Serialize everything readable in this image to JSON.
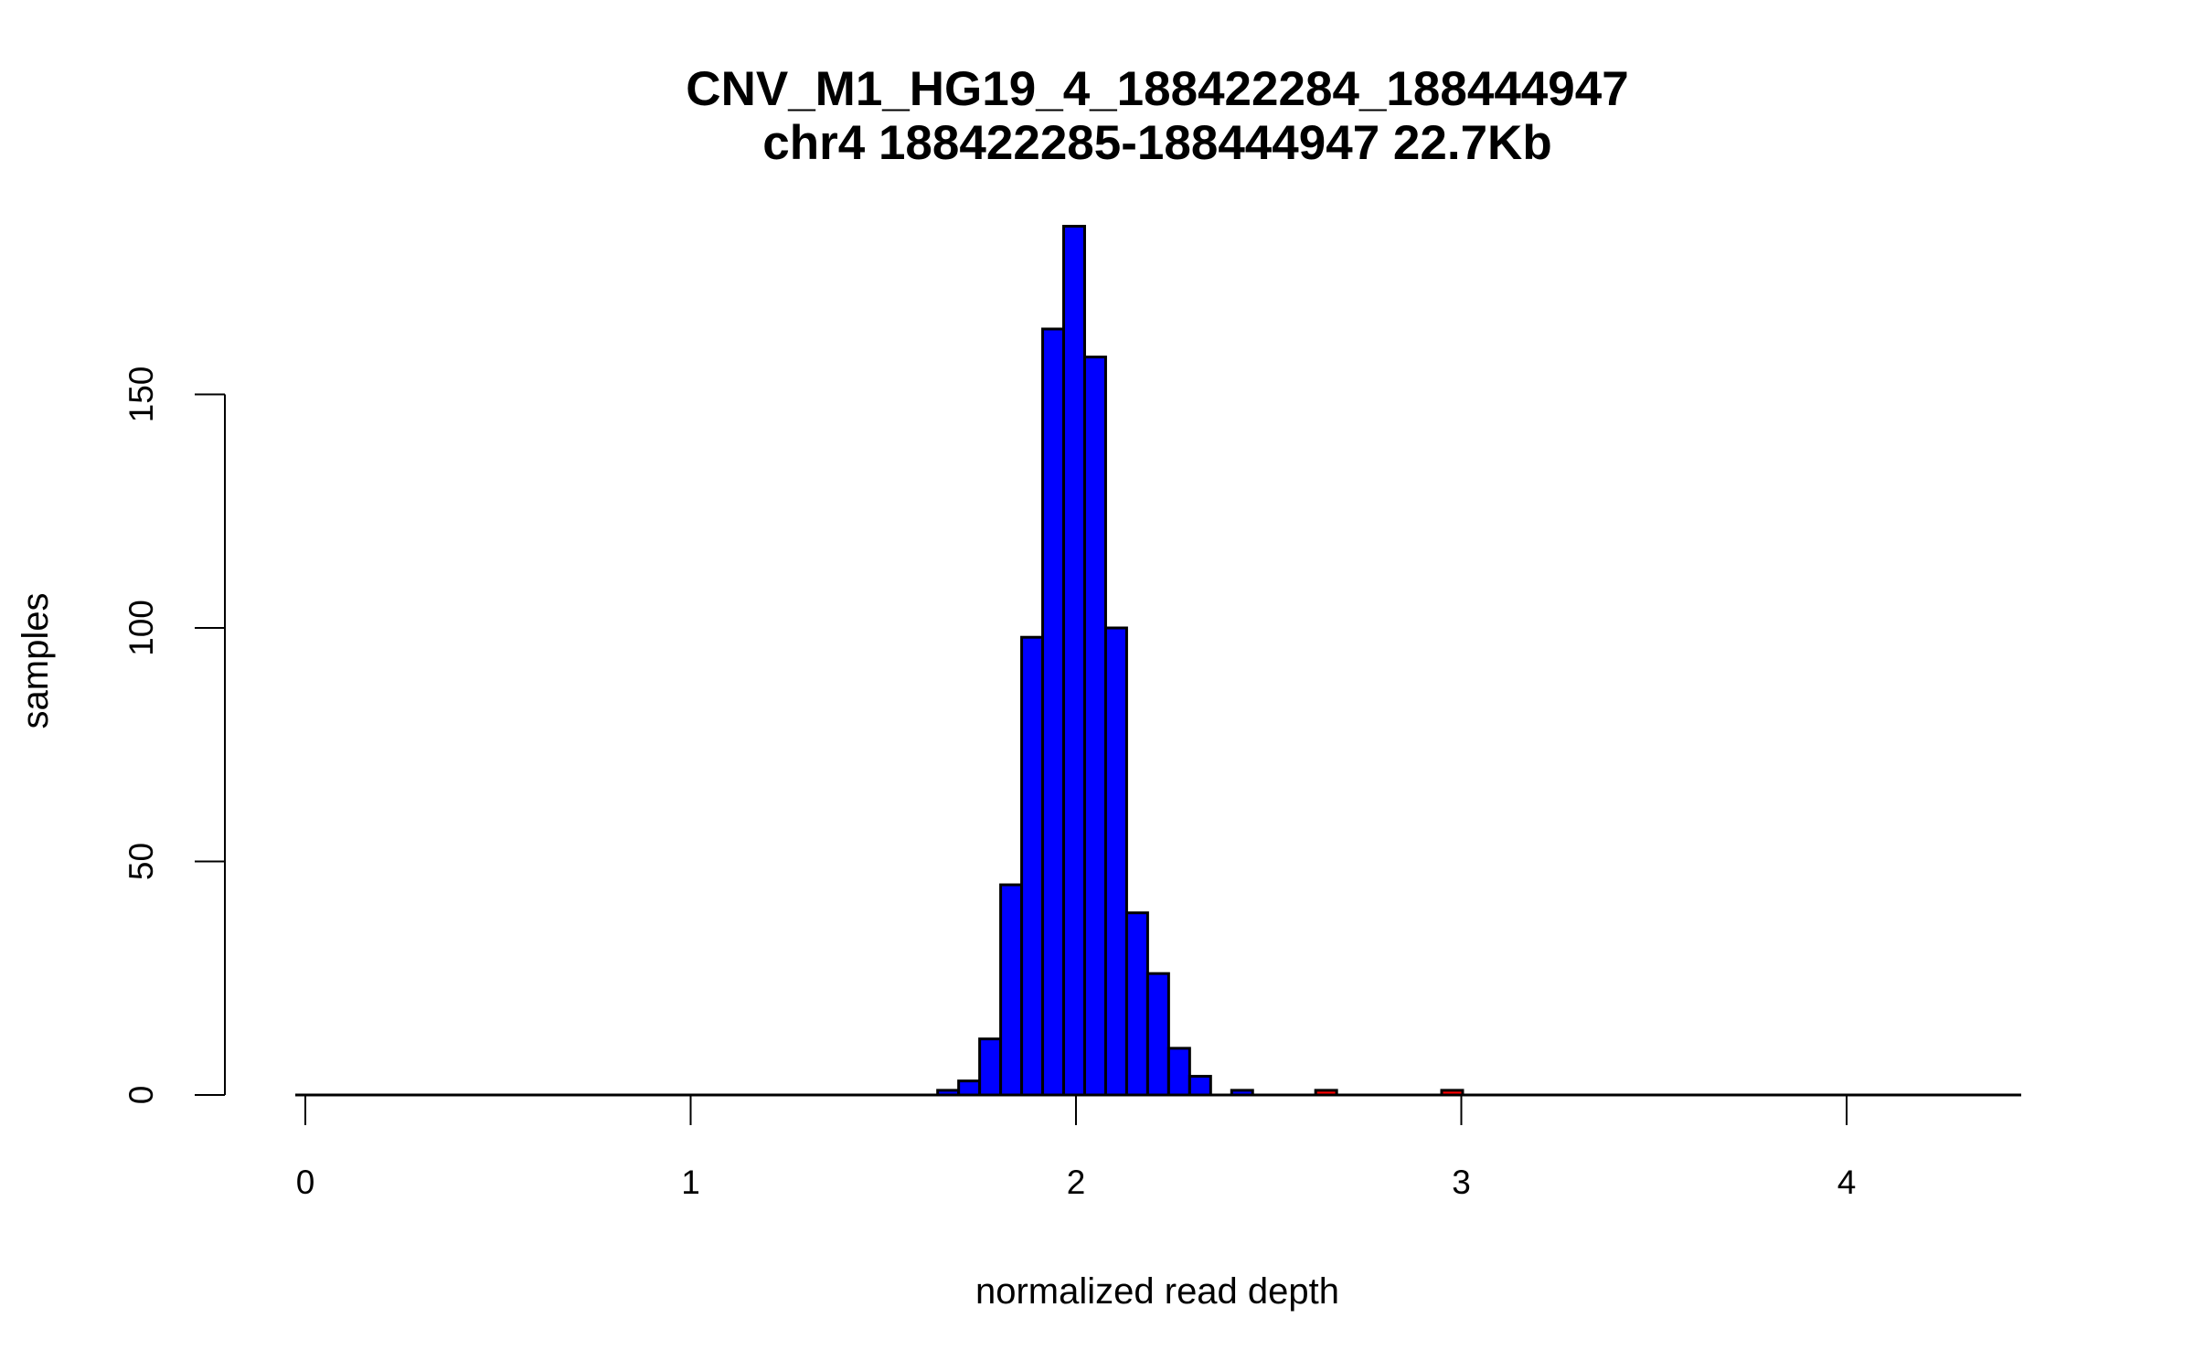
{
  "chart_data": {
    "type": "bar",
    "title": "CNV_M1_HG19_4_188422284_188444947",
    "subtitle": "chr4 188422285-188444947 22.7Kb",
    "xlabel": "normalized read depth",
    "ylabel": "samples",
    "xlim": [
      0,
      4.4
    ],
    "ylim": [
      0,
      190
    ],
    "x_ticks": [
      "0",
      "1",
      "2",
      "3",
      "4"
    ],
    "y_ticks": [
      "0",
      "50",
      "100",
      "150"
    ],
    "grid": false,
    "bin_start": 1.641,
    "bin_width": 0.0545,
    "bins": [
      {
        "count": 1,
        "color": "#0000ff"
      },
      {
        "count": 3,
        "color": "#0000ff"
      },
      {
        "count": 12,
        "color": "#0000ff"
      },
      {
        "count": 45,
        "color": "#0000ff"
      },
      {
        "count": 98,
        "color": "#0000ff"
      },
      {
        "count": 164,
        "color": "#0000ff"
      },
      {
        "count": 186,
        "color": "#0000ff"
      },
      {
        "count": 158,
        "color": "#0000ff"
      },
      {
        "count": 100,
        "color": "#0000ff"
      },
      {
        "count": 39,
        "color": "#0000ff"
      },
      {
        "count": 26,
        "color": "#0000ff"
      },
      {
        "count": 10,
        "color": "#0000ff"
      },
      {
        "count": 4,
        "color": "#0000ff"
      },
      {
        "count": 0,
        "color": "#0000ff"
      },
      {
        "count": 1,
        "color": "#0000ff"
      },
      {
        "count": 0,
        "color": "#0000ff"
      },
      {
        "count": 0,
        "color": "#0000ff"
      },
      {
        "count": 0,
        "color": "#0000ff"
      },
      {
        "count": 1,
        "color": "#ff0000"
      },
      {
        "count": 0,
        "color": "#ff0000"
      },
      {
        "count": 0,
        "color": "#ff0000"
      },
      {
        "count": 0,
        "color": "#ff0000"
      },
      {
        "count": 0,
        "color": "#ff0000"
      },
      {
        "count": 0,
        "color": "#ff0000"
      },
      {
        "count": 1,
        "color": "#ff0000"
      }
    ]
  }
}
